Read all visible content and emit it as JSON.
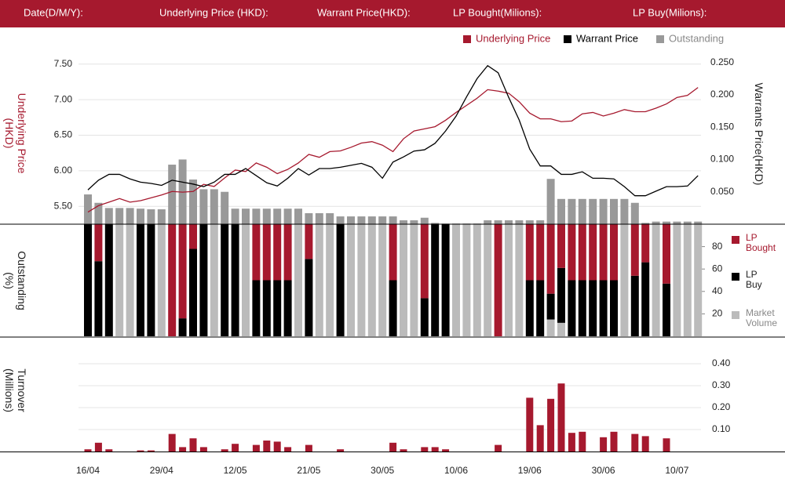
{
  "header": {
    "fields": [
      "Date(D/M/Y):",
      "Underlying Price (HKD):",
      "Warrant  Price(HKD):",
      "LP Bought(Milions):",
      "LP Buy(Milions):"
    ]
  },
  "chart_data": [
    {
      "type": "combo",
      "y_title": "Underlying Price (HKD)",
      "y2_title": "Warrants  Price(HKD)",
      "ylim": [
        5.25,
        7.75
      ],
      "yticks": [
        {
          "value": 5.5,
          "label": "5.50"
        },
        {
          "value": 6,
          "label": "6.00"
        },
        {
          "value": 6.5,
          "label": "6.50"
        },
        {
          "value": 7,
          "label": "7.00"
        },
        {
          "value": 7.5,
          "label": "7.50"
        }
      ],
      "y2lim": [
        0,
        0.275
      ],
      "y2ticks": [
        {
          "value": 0.05,
          "label": "0.050"
        },
        {
          "value": 0.1,
          "label": "0.100"
        },
        {
          "value": 0.15,
          "label": "0.150"
        },
        {
          "value": 0.2,
          "label": "0.200"
        },
        {
          "value": 0.25,
          "label": "0.250"
        }
      ],
      "grid": true,
      "series": [
        {
          "name": "Underlying Price",
          "color": "#a6192e",
          "kind": "line",
          "values": [
            5.42,
            5.51,
            5.56,
            5.61,
            5.56,
            5.58,
            5.62,
            5.66,
            5.71,
            5.7,
            5.71,
            5.81,
            5.78,
            5.9,
            6.01,
            5.99,
            6.11,
            6.05,
            5.96,
            6.02,
            6.11,
            6.23,
            6.19,
            6.27,
            6.28,
            6.33,
            6.39,
            6.41,
            6.36,
            6.27,
            6.45,
            6.56,
            6.59,
            6.62,
            6.71,
            6.82,
            6.92,
            7.02,
            7.14,
            7.12,
            7.09,
            6.97,
            6.81,
            6.73,
            6.73,
            6.69,
            6.7,
            6.8,
            6.82,
            6.77,
            6.81,
            6.86,
            6.83,
            6.83,
            6.88,
            6.94,
            7.03,
            7.06,
            7.17
          ]
        },
        {
          "name": "Warrant  Price",
          "color": "#000000",
          "kind": "line",
          "axis": "y2",
          "values": [
            0.053,
            0.068,
            0.077,
            0.077,
            0.07,
            0.065,
            0.063,
            0.06,
            0.068,
            0.065,
            0.062,
            0.058,
            0.065,
            0.077,
            0.077,
            0.086,
            0.075,
            0.064,
            0.059,
            0.071,
            0.086,
            0.076,
            0.086,
            0.086,
            0.088,
            0.091,
            0.094,
            0.088,
            0.071,
            0.096,
            0.104,
            0.113,
            0.115,
            0.125,
            0.144,
            0.167,
            0.197,
            0.225,
            0.245,
            0.234,
            0.196,
            0.161,
            0.116,
            0.09,
            0.09,
            0.077,
            0.077,
            0.081,
            0.071,
            0.071,
            0.07,
            0.058,
            0.044,
            0.044,
            0.051,
            0.058,
            0.058,
            0.059,
            0.075
          ]
        },
        {
          "name": "Outstanding",
          "color": "#999999",
          "kind": "bar",
          "axis": "y2",
          "values": [
            0.046,
            0.033,
            0.025,
            0.025,
            0.025,
            0.024,
            0.023,
            0.023,
            0.092,
            0.1,
            0.069,
            0.054,
            0.054,
            0.05,
            0.024,
            0.024,
            0.024,
            0.024,
            0.024,
            0.024,
            0.024,
            0.017,
            0.017,
            0.017,
            0.012,
            0.012,
            0.012,
            0.012,
            0.012,
            0.012,
            0.006,
            0.006,
            0.01,
            0.002,
            0.001,
            0.001,
            0.001,
            0.001,
            0.006,
            0.006,
            0.006,
            0.006,
            0.006,
            0.006,
            0.07,
            0.039,
            0.039,
            0.039,
            0.039,
            0.039,
            0.039,
            0.039,
            0.033,
            0.002,
            0.004,
            0.004,
            0.004,
            0.004,
            0.004
          ]
        }
      ]
    },
    {
      "type": "stacked_bar",
      "y_title": "Outstanding (%)",
      "ylim": [
        0,
        100
      ],
      "yticks": [
        20,
        40,
        60,
        80
      ],
      "series": [
        {
          "name": "LP Bought",
          "color": "#a6192e",
          "values": [
            0,
            33,
            0,
            0,
            0,
            0,
            0,
            0,
            100,
            84,
            22,
            0,
            0,
            0,
            0,
            0,
            50,
            50,
            50,
            50,
            0,
            31,
            0,
            0,
            0,
            0,
            0,
            0,
            0,
            50,
            0,
            0,
            66,
            0,
            0,
            0,
            0,
            0,
            0,
            100,
            0,
            0,
            50,
            50,
            62,
            39,
            50,
            50,
            50,
            50,
            50,
            0,
            46,
            34,
            0,
            53,
            0,
            0,
            0
          ]
        },
        {
          "name": "LP Buy",
          "color": "#000000",
          "values": [
            100,
            67,
            100,
            0,
            0,
            100,
            100,
            0,
            0,
            16,
            78,
            100,
            0,
            100,
            100,
            0,
            50,
            50,
            50,
            50,
            0,
            69,
            0,
            0,
            100,
            0,
            0,
            0,
            0,
            50,
            0,
            0,
            34,
            100,
            100,
            0,
            0,
            0,
            0,
            0,
            0,
            0,
            50,
            50,
            23,
            49,
            50,
            50,
            50,
            50,
            50,
            0,
            54,
            66,
            0,
            47,
            0,
            0,
            0
          ]
        },
        {
          "name": "Market Volume",
          "color": "#bbbbbb",
          "values": [
            0,
            0,
            0,
            100,
            100,
            0,
            0,
            100,
            0,
            0,
            0,
            0,
            100,
            0,
            0,
            100,
            0,
            0,
            0,
            0,
            100,
            0,
            100,
            100,
            0,
            100,
            100,
            100,
            100,
            0,
            100,
            100,
            0,
            0,
            0,
            100,
            100,
            100,
            100,
            0,
            100,
            100,
            0,
            0,
            15,
            12,
            0,
            0,
            0,
            0,
            0,
            100,
            0,
            0,
            100,
            0,
            100,
            100,
            100
          ]
        }
      ]
    },
    {
      "type": "bar",
      "y_title": "Turnover (Millions)",
      "ylim": [
        0,
        0.43
      ],
      "yticks": [
        {
          "value": 0.1,
          "label": "0.10"
        },
        {
          "value": 0.2,
          "label": "0.20"
        },
        {
          "value": 0.3,
          "label": "0.30"
        },
        {
          "value": 0.4,
          "label": "0.40"
        }
      ],
      "grid": true,
      "color": "#a6192e",
      "categories": [
        "16/04",
        null,
        null,
        null,
        null,
        null,
        null,
        "29/04",
        null,
        null,
        null,
        null,
        null,
        null,
        "12/05",
        null,
        null,
        null,
        null,
        null,
        null,
        "21/05",
        null,
        null,
        null,
        null,
        null,
        null,
        "30/05",
        null,
        null,
        null,
        null,
        null,
        null,
        "10/06",
        null,
        null,
        null,
        null,
        null,
        null,
        "19/06",
        null,
        null,
        null,
        null,
        null,
        null,
        "30/06",
        null,
        null,
        null,
        null,
        null,
        null,
        "10/07",
        null,
        null
      ],
      "values": [
        0.01,
        0.04,
        0.01,
        0,
        0,
        0.005,
        0.005,
        0,
        0.08,
        0.02,
        0.06,
        0.02,
        0,
        0.01,
        0.035,
        0,
        0.03,
        0.05,
        0.045,
        0.02,
        0,
        0.03,
        0,
        0,
        0.01,
        0,
        0,
        0,
        0,
        0.04,
        0.01,
        0,
        0.02,
        0.02,
        0.01,
        0,
        0,
        0,
        0,
        0.03,
        0,
        0,
        0.245,
        0.12,
        0.24,
        0.31,
        0.085,
        0.09,
        0,
        0.065,
        0.09,
        0,
        0.08,
        0.07,
        0,
        0.06,
        0,
        0,
        0
      ]
    }
  ]
}
